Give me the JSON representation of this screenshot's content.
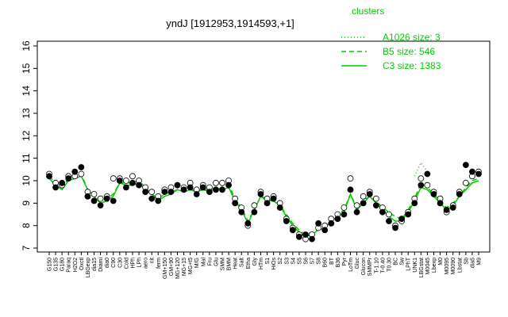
{
  "chart_data": {
    "type": "line",
    "title": "yndJ [1912953,1914593,+1]",
    "legend_title": "clusters",
    "legend_position": "top-right",
    "categories": [
      "G150",
      "G135",
      "G180",
      "Paraq",
      "H2O2",
      "Oxctl",
      "LBGexp",
      "dia15",
      "Diami",
      "dia0",
      "C90",
      "C30",
      "Cold",
      "HPh",
      "LPh",
      "aero",
      "nit",
      "ferm",
      "GM+150",
      "GM+90",
      "MG+120",
      "MG+15",
      "MG+t5",
      "M/G",
      "Mal",
      "Fru",
      "Glu",
      "SMM",
      "BMM",
      "Heat",
      "Salt",
      "Etha",
      "Gly",
      "HTm",
      "S1",
      "HiOs",
      "S2",
      "S3",
      "S4",
      "S5",
      "S6",
      "S7",
      "S8",
      "B60",
      "BT",
      "B36",
      "Pyr",
      "LoTm",
      "Gluc",
      "Glucon",
      "SMMPr",
      "T-1.10",
      "T-0.40",
      "T0.30",
      "BC",
      "Sw",
      "LPhT",
      "UNK1",
      "LBGstat",
      "M0045",
      "Lbexp",
      "M0",
      "M0095",
      "M0090",
      "Lbstat",
      "Sb",
      "dia5",
      "M9"
    ],
    "series": [
      {
        "name": "A1026 size: 3",
        "color": "#00cc00",
        "dash": "1,3",
        "values": [
          null,
          null,
          null,
          null,
          null,
          null,
          null,
          null,
          null,
          null,
          null,
          null,
          null,
          null,
          null,
          null,
          null,
          null,
          null,
          null,
          null,
          null,
          null,
          null,
          null,
          null,
          null,
          null,
          null,
          null,
          null,
          null,
          null,
          null,
          null,
          null,
          null,
          null,
          null,
          null,
          null,
          null,
          null,
          null,
          null,
          null,
          null,
          null,
          null,
          null,
          null,
          null,
          null,
          null,
          null,
          null,
          null,
          10.2,
          10.8,
          10.4,
          null,
          null,
          null,
          null,
          null,
          null,
          null,
          null
        ]
      },
      {
        "name": "B5 size: 546",
        "color": "#00cc00",
        "dash": "6,4",
        "values": [
          10.2,
          9.9,
          9.7,
          10.1,
          10.2,
          10.3,
          9.6,
          9.4,
          9.1,
          9.2,
          9.4,
          9.9,
          9.9,
          9.9,
          10.0,
          9.7,
          9.4,
          9.2,
          9.4,
          9.5,
          9.6,
          9.6,
          9.6,
          9.6,
          9.6,
          9.6,
          9.7,
          9.6,
          9.8,
          9.2,
          8.8,
          8.2,
          8.7,
          9.3,
          9.2,
          9.1,
          8.9,
          8.5,
          8.1,
          7.8,
          7.6,
          7.7,
          7.8,
          8.0,
          8.2,
          8.5,
          8.7,
          9.4,
          8.8,
          9.1,
          9.3,
          9.1,
          8.8,
          8.6,
          8.4,
          8.3,
          8.7,
          9.2,
          9.9,
          9.7,
          9.4,
          9.1,
          8.8,
          9.0,
          9.3,
          9.7,
          10.0,
          10.1
        ]
      },
      {
        "name": "C3 size: 1383",
        "color": "#00cc00",
        "dash": "",
        "values": [
          10.1,
          9.8,
          9.6,
          10.0,
          10.1,
          10.2,
          9.6,
          9.3,
          9.0,
          9.1,
          9.3,
          9.9,
          9.8,
          9.8,
          9.9,
          9.6,
          9.4,
          9.1,
          9.3,
          9.4,
          9.6,
          9.5,
          9.6,
          9.5,
          9.6,
          9.5,
          9.7,
          9.6,
          9.7,
          9.1,
          8.7,
          8.1,
          8.7,
          9.3,
          9.1,
          9.1,
          8.9,
          8.4,
          8.0,
          7.7,
          7.5,
          7.6,
          7.8,
          7.9,
          8.2,
          8.4,
          8.6,
          9.4,
          8.7,
          9.0,
          9.3,
          9.0,
          8.7,
          8.4,
          8.2,
          8.2,
          8.6,
          9.1,
          9.7,
          9.6,
          9.3,
          9.0,
          8.7,
          8.9,
          9.3,
          9.6,
          9.9,
          10.0
        ]
      }
    ],
    "markers": {
      "open": [
        10.3,
        9.9,
        9.8,
        10.2,
        10.2,
        10.3,
        9.5,
        9.4,
        9.2,
        9.3,
        10.1,
        10.1,
        10.0,
        10.2,
        10.0,
        9.7,
        9.5,
        9.3,
        9.6,
        9.7,
        9.8,
        9.7,
        9.9,
        9.6,
        9.8,
        9.7,
        9.9,
        9.9,
        10.0,
        9.2,
        8.8,
        8.0,
        8.9,
        9.5,
        9.2,
        9.3,
        9.0,
        8.3,
        7.9,
        7.6,
        7.4,
        7.6,
        7.9,
        8.0,
        8.3,
        8.5,
        8.8,
        10.1,
        8.9,
        9.3,
        9.5,
        9.2,
        8.8,
        8.5,
        8.0,
        8.2,
        8.6,
        9.2,
        10.1,
        9.8,
        9.5,
        9.2,
        8.6,
        8.9,
        9.5,
        9.9,
        10.2,
        10.4
      ],
      "filled": [
        10.2,
        9.7,
        9.9,
        10.1,
        10.4,
        10.6,
        9.3,
        9.1,
        8.9,
        9.2,
        9.1,
        10.0,
        9.7,
        9.9,
        9.8,
        9.5,
        9.2,
        9.1,
        9.5,
        9.5,
        9.8,
        9.6,
        9.7,
        9.4,
        9.7,
        9.5,
        9.6,
        9.6,
        9.8,
        9.0,
        8.6,
        8.1,
        8.6,
        9.4,
        9.0,
        9.2,
        8.8,
        8.2,
        7.8,
        7.5,
        7.6,
        7.4,
        8.1,
        7.8,
        8.1,
        8.3,
        8.5,
        9.6,
        8.6,
        9.0,
        9.4,
        8.9,
        8.6,
        8.2,
        7.9,
        8.3,
        8.5,
        9.0,
        9.8,
        10.3,
        9.4,
        9.0,
        8.7,
        8.8,
        9.4,
        10.7,
        10.4,
        10.3
      ]
    },
    "ylim": [
      7,
      16
    ],
    "yticks": [
      7,
      8,
      9,
      10,
      11,
      12,
      13,
      14,
      15,
      16
    ]
  }
}
